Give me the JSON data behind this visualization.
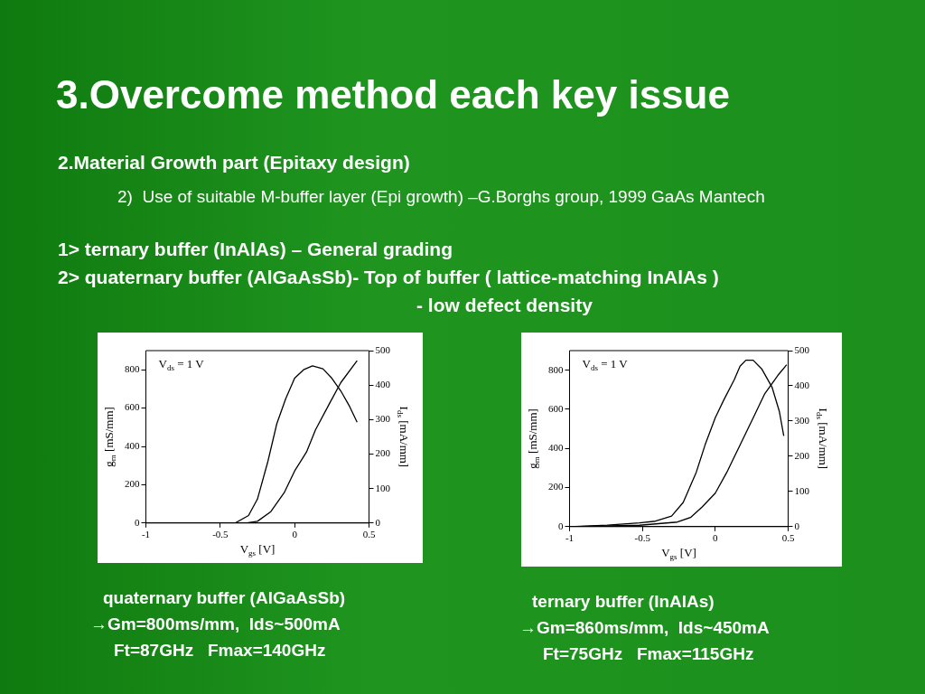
{
  "chart_data": [
    {
      "type": "other",
      "title": "3.Overcome method each key issue",
      "subtitle": "2.Material Growth part (Epitaxy design)",
      "annotations": [
        "2)  Use of suitable M-buffer layer (Epi growth) –G.Borghs group, 1999 GaAs Mantech",
        "1> ternary buffer (InAlAs) – General grading",
        "2> quaternary buffer (AlGaAsSb)- Top of buffer ( lattice-matching InAlAs )",
        "- low defect density"
      ]
    },
    {
      "type": "line",
      "xlabel": "V$_{gs}$ [V]",
      "ylabel": "g$_{m}$ [mS/mm]",
      "y2label": "I$_{ds}$ [mA/mm]",
      "xlim": [
        -1,
        0.5
      ],
      "xticks": [
        -1,
        -0.5,
        0,
        0.5
      ],
      "ylim": [
        0,
        900
      ],
      "yticks": [
        0,
        200,
        400,
        600,
        800
      ],
      "y2lim": [
        0,
        500
      ],
      "y2ticks": [
        0,
        100,
        200,
        300,
        400,
        500
      ],
      "grid": false,
      "legend": false,
      "marker": "none",
      "line_style": "solid",
      "annotations": [
        "V$_{ds}$ = 1 V",
        "quaternary buffer (AlGaAsSb)",
        "→Gm=800ms/mm,  Ids~500mA",
        "Ft=87GHz   Fmax=140GHz"
      ],
      "series": [
        {
          "color": "#000000",
          "x": [
            -0.4,
            -0.31,
            -0.25,
            -0.18,
            -0.12,
            -0.06,
            0.0,
            0.06,
            0.12,
            0.19,
            0.25,
            0.31,
            0.37,
            0.42
          ],
          "values": [
            0,
            39,
            125,
            321,
            518,
            649,
            756,
            800,
            820,
            805,
            756,
            690,
            608,
            526
          ]
        },
        {
          "color": "#000000",
          "axis": "y2",
          "x": [
            -0.33,
            -0.25,
            -0.16,
            -0.07,
            0.0,
            0.08,
            0.14,
            0.23,
            0.31,
            0.42
          ],
          "values": [
            0,
            5,
            33,
            88,
            151,
            206,
            270,
            343,
            407,
            471
          ]
        }
      ]
    },
    {
      "type": "line",
      "xlabel": "V$_{gs}$ [V]",
      "ylabel": "g$_{m}$ [mS/mm]",
      "y2label": "I$_{ds}$ [mA/mm]",
      "xlim": [
        -1,
        0.5
      ],
      "xticks": [
        -1,
        -0.5,
        0,
        0.5
      ],
      "ylim": [
        0,
        900
      ],
      "yticks": [
        0,
        200,
        400,
        600,
        800
      ],
      "y2lim": [
        0,
        500
      ],
      "y2ticks": [
        0,
        100,
        200,
        300,
        400,
        500
      ],
      "grid": false,
      "legend": false,
      "marker": "none",
      "line_style": "solid",
      "annotations": [
        "V$_{ds}$ = 1 V",
        "ternary buffer (InAlAs)",
        "→Gm=860ms/mm,  Ids~450mA",
        "Ft=75GHz   Fmax=115GHz"
      ],
      "series": [
        {
          "color": "#000000",
          "x": [
            -1,
            -0.74,
            -0.52,
            -0.41,
            -0.3,
            -0.22,
            -0.13,
            -0.07,
            0.0,
            0.06,
            0.13,
            0.17,
            0.21,
            0.26,
            0.32,
            0.39,
            0.44,
            0.47
          ],
          "values": [
            0,
            8,
            19,
            28,
            54,
            124,
            279,
            418,
            557,
            650,
            751,
            820,
            851,
            851,
            805,
            712,
            588,
            464
          ]
        },
        {
          "color": "#000000",
          "axis": "y2",
          "x": [
            -1,
            -0.52,
            -0.26,
            -0.17,
            -0.09,
            0.0,
            0.08,
            0.17,
            0.26,
            0.34,
            0.43,
            0.49
          ],
          "values": [
            0,
            4,
            13,
            26,
            56,
            95,
            155,
            232,
            309,
            378,
            430,
            460
          ]
        }
      ]
    }
  ]
}
